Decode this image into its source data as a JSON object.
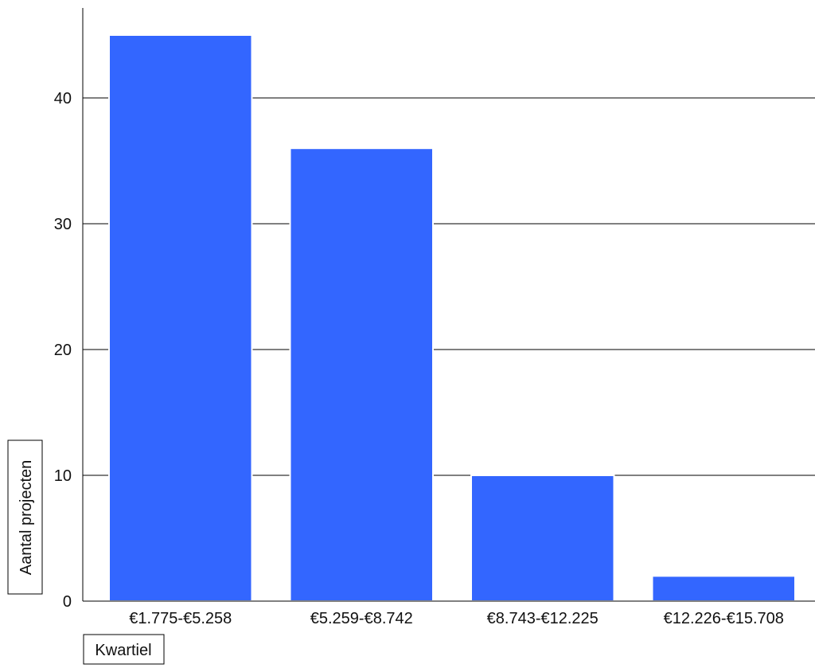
{
  "chart_data": {
    "type": "bar",
    "categories": [
      "€1.775-€5.258",
      "€5.259-€8.742",
      "€8.743-€12.225",
      "€12.226-€15.708"
    ],
    "values": [
      45,
      36,
      10,
      2
    ],
    "xlabel": "Kwartiel",
    "ylabel": "Aantal projecten",
    "ylim": [
      0,
      47.5
    ],
    "yticks": [
      0,
      10,
      20,
      30,
      40
    ],
    "grid": true,
    "bar_color": "#3366ff",
    "legend": "none"
  }
}
